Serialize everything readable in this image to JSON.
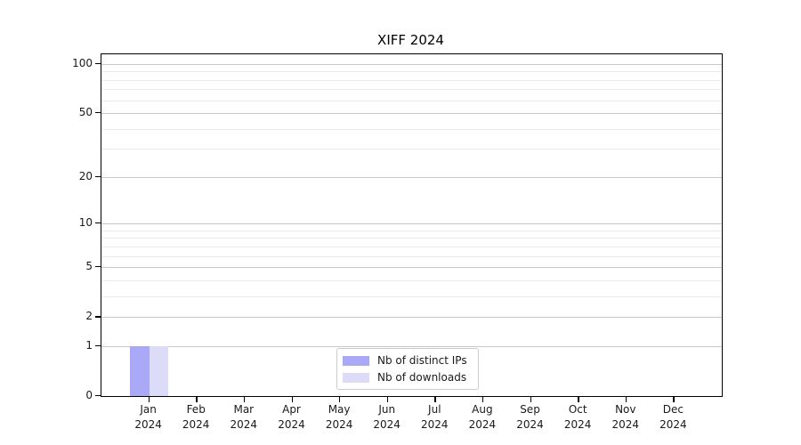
{
  "chart_data": {
    "type": "bar",
    "title": "XIFF 2024",
    "xlabel": "",
    "ylabel": "",
    "year": "2024",
    "categories": [
      "Jan",
      "Feb",
      "Mar",
      "Apr",
      "May",
      "Jun",
      "Jul",
      "Aug",
      "Sep",
      "Oct",
      "Nov",
      "Dec"
    ],
    "series": [
      {
        "name": "Nb of distinct IPs",
        "color": "#a9a9f7",
        "values": [
          1,
          0,
          0,
          0,
          0,
          0,
          0,
          0,
          0,
          0,
          0,
          0
        ]
      },
      {
        "name": "Nb of downloads",
        "color": "#dcdcf8",
        "values": [
          1,
          0,
          0,
          0,
          0,
          0,
          0,
          0,
          0,
          0,
          0,
          0
        ]
      }
    ],
    "y_axis": {
      "scale": "log1p",
      "ticks": [
        0,
        1,
        2,
        5,
        10,
        20,
        50,
        100
      ],
      "minor_gridlines": [
        3,
        4,
        6,
        7,
        8,
        9,
        30,
        40,
        60,
        70,
        80,
        90
      ],
      "ylim": [
        0,
        115
      ]
    },
    "grid": "horizontal",
    "legend": {
      "position": "inside-bottom-center",
      "border_color": "#cccccc"
    },
    "frame_color": "#000000",
    "background_color": "#ffffff"
  }
}
